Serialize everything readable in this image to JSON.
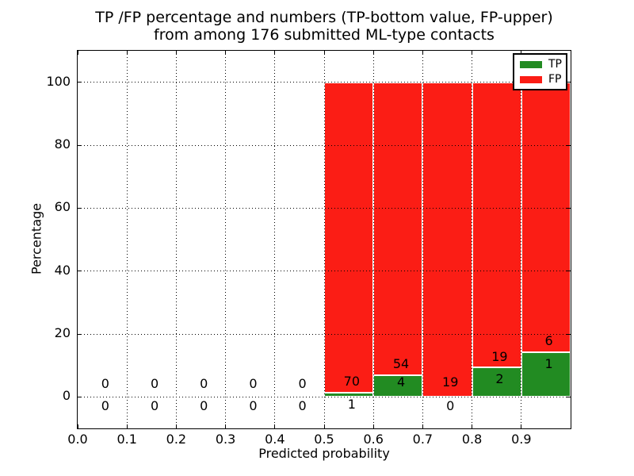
{
  "chart": {
    "title_line1": "TP /FP percentage and numbers (TP-bottom value, FP-upper)",
    "title_line2": "from among 176 submitted ML-type contacts",
    "xlabel": "Predicted probability",
    "ylabel": "Percentage"
  },
  "legend": {
    "items": [
      {
        "label": "TP",
        "color": "#228b22"
      },
      {
        "label": "FP",
        "color": "#fb1d15"
      }
    ]
  },
  "chart_data": {
    "type": "bar",
    "stacked": true,
    "title": "TP /FP percentage and numbers (TP-bottom value, FP-upper)\nfrom among 176 submitted ML-type contacts",
    "xlabel": "Predicted probability",
    "ylabel": "Percentage",
    "xlim": [
      0.0,
      1.0
    ],
    "ylim": [
      -10,
      110
    ],
    "xticks": [
      "0.0",
      "0.1",
      "0.2",
      "0.3",
      "0.4",
      "0.5",
      "0.6",
      "0.7",
      "0.8",
      "0.9"
    ],
    "yticks": [
      "0",
      "20",
      "40",
      "60",
      "80",
      "100"
    ],
    "grid": "dotted",
    "legend_position": "upper right",
    "bin_edges": [
      0.0,
      0.1,
      0.2,
      0.3,
      0.4,
      0.5,
      0.6,
      0.7,
      0.8,
      0.9,
      1.0
    ],
    "series": [
      {
        "name": "TP",
        "color": "#228b22",
        "counts": [
          0,
          0,
          0,
          0,
          0,
          1,
          4,
          0,
          2,
          1
        ],
        "pct": [
          0,
          0,
          0,
          0,
          0,
          1.408,
          6.897,
          0,
          9.524,
          14.286
        ]
      },
      {
        "name": "FP",
        "color": "#fb1d15",
        "counts": [
          0,
          0,
          0,
          0,
          0,
          70,
          54,
          19,
          19,
          6
        ],
        "pct": [
          0,
          0,
          0,
          0,
          0,
          98.592,
          93.103,
          100,
          90.476,
          85.714
        ]
      }
    ],
    "annotations": [
      {
        "text": "0",
        "x": 0.056,
        "y": 4.2
      },
      {
        "text": "0",
        "x": 0.056,
        "y": -3.0
      },
      {
        "text": "0",
        "x": 0.156,
        "y": 4.2
      },
      {
        "text": "0",
        "x": 0.156,
        "y": -3.0
      },
      {
        "text": "0",
        "x": 0.256,
        "y": 4.2
      },
      {
        "text": "0",
        "x": 0.256,
        "y": -3.0
      },
      {
        "text": "0",
        "x": 0.356,
        "y": 4.2
      },
      {
        "text": "0",
        "x": 0.356,
        "y": -3.0
      },
      {
        "text": "0",
        "x": 0.456,
        "y": 4.2
      },
      {
        "text": "0",
        "x": 0.456,
        "y": -3.0
      },
      {
        "text": "70",
        "x": 0.556,
        "y": 5.0
      },
      {
        "text": "1",
        "x": 0.556,
        "y": -2.4
      },
      {
        "text": "54",
        "x": 0.656,
        "y": 10.4
      },
      {
        "text": "4",
        "x": 0.656,
        "y": 4.7
      },
      {
        "text": "19",
        "x": 0.756,
        "y": 4.7
      },
      {
        "text": "0",
        "x": 0.756,
        "y": -3.0
      },
      {
        "text": "19",
        "x": 0.856,
        "y": 12.8
      },
      {
        "text": "2",
        "x": 0.856,
        "y": 5.6
      },
      {
        "text": "6",
        "x": 0.956,
        "y": 17.7
      },
      {
        "text": "1",
        "x": 0.956,
        "y": 10.4
      }
    ]
  }
}
